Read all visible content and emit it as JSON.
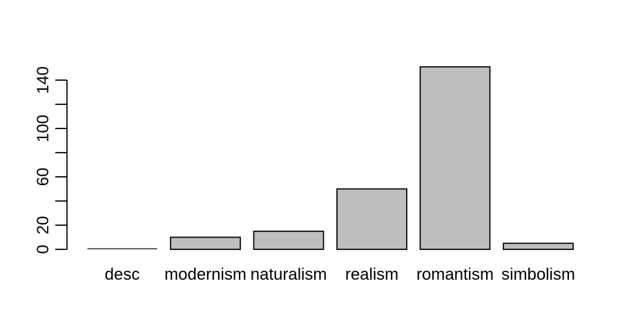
{
  "figure": {
    "background": "#ffffff"
  },
  "chart_data": {
    "type": "bar",
    "title": "",
    "xlabel": "",
    "ylabel": "",
    "categories": [
      "desc",
      "modernism",
      "naturalism",
      "realism",
      "romantism",
      "simbolism"
    ],
    "values": [
      0,
      10,
      15,
      50,
      151,
      5
    ],
    "ylim": [
      0,
      155
    ],
    "yticks": [
      0,
      20,
      40,
      60,
      80,
      100,
      120,
      140
    ],
    "ytick_labels_shown": [
      0,
      20,
      60,
      100,
      140
    ],
    "grid": false,
    "legend_position": "none",
    "bar_fill": "#bebebe",
    "bar_stroke": "#000000",
    "axis_color": "#000000",
    "text_color": "#000000"
  }
}
